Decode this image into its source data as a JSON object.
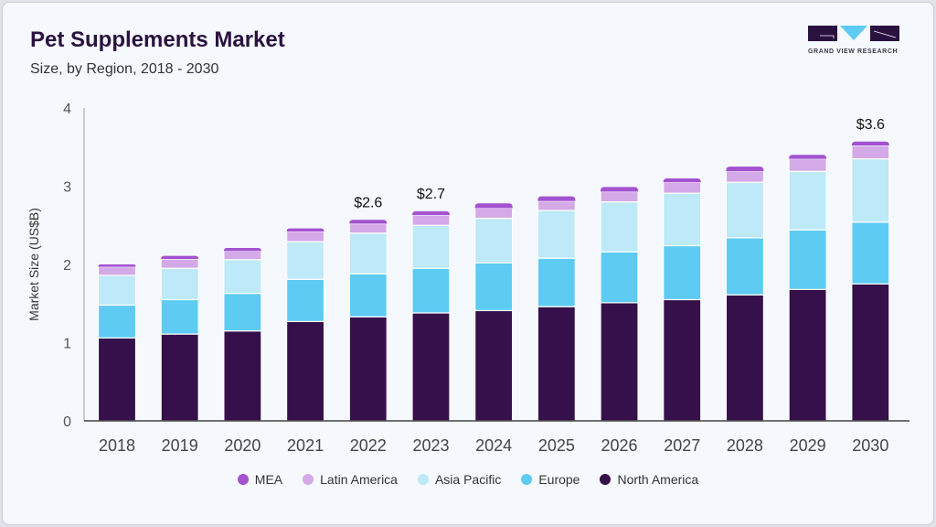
{
  "header": {
    "title": "Pet Supplements Market",
    "subtitle": "Size, by Region, 2018 - 2030",
    "logo_text": "GRAND VIEW RESEARCH"
  },
  "chart_data": {
    "type": "bar",
    "stacked": true,
    "title": "Pet Supplements Market",
    "subtitle": "Size, by Region, 2018 - 2030",
    "xlabel": "",
    "ylabel": "Market Size (US$B)",
    "ylim": [
      0,
      4
    ],
    "yticks": [
      "0",
      "1",
      "2",
      "3",
      "4"
    ],
    "categories": [
      "2018",
      "2019",
      "2020",
      "2021",
      "2022",
      "2023",
      "2024",
      "2025",
      "2026",
      "2027",
      "2028",
      "2029",
      "2030"
    ],
    "series": [
      {
        "name": "North America",
        "color": "#35104a",
        "values": [
          1.06,
          1.11,
          1.15,
          1.27,
          1.33,
          1.38,
          1.41,
          1.46,
          1.51,
          1.55,
          1.61,
          1.68,
          1.75
        ]
      },
      {
        "name": "Europe",
        "color": "#5ecbf3",
        "values": [
          0.42,
          0.44,
          0.48,
          0.54,
          0.55,
          0.57,
          0.61,
          0.62,
          0.65,
          0.69,
          0.73,
          0.76,
          0.79
        ]
      },
      {
        "name": "Asia Pacific",
        "color": "#bde9f8",
        "values": [
          0.38,
          0.4,
          0.43,
          0.48,
          0.52,
          0.55,
          0.57,
          0.61,
          0.64,
          0.67,
          0.71,
          0.75,
          0.81
        ]
      },
      {
        "name": "Latin America",
        "color": "#d4a9e8",
        "values": [
          0.11,
          0.12,
          0.11,
          0.13,
          0.12,
          0.13,
          0.13,
          0.12,
          0.13,
          0.14,
          0.14,
          0.16,
          0.17
        ]
      },
      {
        "name": "MEA",
        "color": "#a352d0",
        "values": [
          0.03,
          0.04,
          0.04,
          0.04,
          0.05,
          0.05,
          0.06,
          0.06,
          0.06,
          0.05,
          0.06,
          0.05,
          0.05
        ]
      }
    ],
    "annotations": [
      {
        "category": "2022",
        "text": "$2.6"
      },
      {
        "category": "2023",
        "text": "$2.7"
      },
      {
        "category": "2030",
        "text": "$3.6"
      }
    ],
    "legend": {
      "placement": "bottom",
      "order": [
        "MEA",
        "Latin America",
        "Asia Pacific",
        "Europe",
        "North America"
      ]
    },
    "grid": false
  }
}
